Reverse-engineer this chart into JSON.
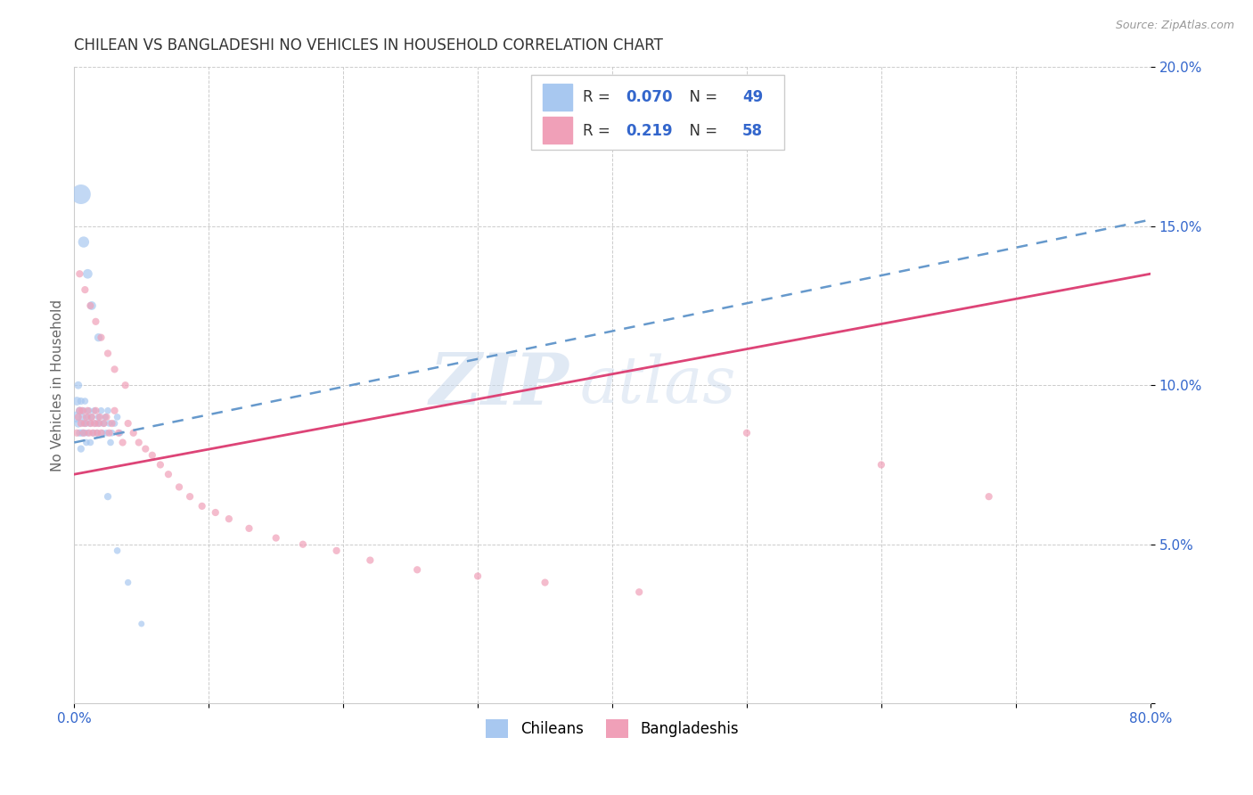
{
  "title": "CHILEAN VS BANGLADESHI NO VEHICLES IN HOUSEHOLD CORRELATION CHART",
  "source": "Source: ZipAtlas.com",
  "xlabel_chileans": "Chileans",
  "xlabel_bangladeshis": "Bangladeshis",
  "ylabel": "No Vehicles in Household",
  "xmin": 0.0,
  "xmax": 0.8,
  "ymin": 0.0,
  "ymax": 0.2,
  "legend_r_chileans": "0.070",
  "legend_n_chileans": "49",
  "legend_r_bangladeshis": "0.219",
  "legend_n_bangladeshis": "58",
  "color_chileans": "#A8C8F0",
  "color_bangladeshis": "#F0A0B8",
  "color_line_chileans": "#6699CC",
  "color_line_bangladeshis": "#DD4477",
  "color_title": "#333333",
  "color_source": "#999999",
  "color_blue": "#3366CC",
  "color_pink": "#DD4477",
  "watermark_color": "#C8D8E8",
  "line_blue_x0": 0.0,
  "line_blue_y0": 0.082,
  "line_blue_x1": 0.8,
  "line_blue_y1": 0.152,
  "line_pink_x0": 0.0,
  "line_pink_y0": 0.072,
  "line_pink_x1": 0.8,
  "line_pink_y1": 0.135,
  "chileans_x": [
    0.001,
    0.002,
    0.003,
    0.003,
    0.004,
    0.004,
    0.005,
    0.005,
    0.006,
    0.006,
    0.007,
    0.007,
    0.008,
    0.008,
    0.009,
    0.009,
    0.01,
    0.01,
    0.011,
    0.012,
    0.012,
    0.013,
    0.014,
    0.015,
    0.016,
    0.017,
    0.018,
    0.019,
    0.02,
    0.021,
    0.022,
    0.023,
    0.024,
    0.025,
    0.026,
    0.027,
    0.028,
    0.03,
    0.032,
    0.034,
    0.005,
    0.007,
    0.01,
    0.013,
    0.018,
    0.025,
    0.032,
    0.04,
    0.05
  ],
  "chileans_y": [
    0.09,
    0.095,
    0.088,
    0.1,
    0.092,
    0.085,
    0.095,
    0.08,
    0.09,
    0.085,
    0.088,
    0.092,
    0.085,
    0.095,
    0.088,
    0.082,
    0.09,
    0.085,
    0.092,
    0.088,
    0.082,
    0.09,
    0.085,
    0.092,
    0.088,
    0.085,
    0.09,
    0.088,
    0.092,
    0.085,
    0.088,
    0.09,
    0.085,
    0.092,
    0.088,
    0.082,
    0.085,
    0.088,
    0.09,
    0.085,
    0.16,
    0.145,
    0.135,
    0.125,
    0.115,
    0.065,
    0.048,
    0.038,
    0.025
  ],
  "chileans_sizes": [
    80,
    50,
    45,
    40,
    40,
    35,
    35,
    35,
    35,
    35,
    30,
    30,
    30,
    30,
    30,
    30,
    30,
    30,
    30,
    30,
    30,
    30,
    30,
    30,
    30,
    30,
    30,
    30,
    30,
    30,
    30,
    30,
    30,
    30,
    30,
    30,
    30,
    30,
    30,
    30,
    250,
    80,
    60,
    50,
    45,
    35,
    30,
    28,
    25
  ],
  "bangladeshis_x": [
    0.002,
    0.003,
    0.004,
    0.005,
    0.006,
    0.007,
    0.008,
    0.009,
    0.01,
    0.011,
    0.012,
    0.013,
    0.014,
    0.015,
    0.016,
    0.017,
    0.018,
    0.019,
    0.02,
    0.022,
    0.024,
    0.026,
    0.028,
    0.03,
    0.033,
    0.036,
    0.04,
    0.044,
    0.048,
    0.053,
    0.058,
    0.064,
    0.07,
    0.078,
    0.086,
    0.095,
    0.105,
    0.115,
    0.13,
    0.15,
    0.17,
    0.195,
    0.22,
    0.255,
    0.3,
    0.35,
    0.42,
    0.5,
    0.6,
    0.68,
    0.004,
    0.008,
    0.012,
    0.016,
    0.02,
    0.025,
    0.03,
    0.038
  ],
  "bangladeshis_y": [
    0.085,
    0.09,
    0.092,
    0.088,
    0.092,
    0.085,
    0.088,
    0.09,
    0.092,
    0.085,
    0.088,
    0.09,
    0.085,
    0.088,
    0.092,
    0.085,
    0.088,
    0.09,
    0.085,
    0.088,
    0.09,
    0.085,
    0.088,
    0.092,
    0.085,
    0.082,
    0.088,
    0.085,
    0.082,
    0.08,
    0.078,
    0.075,
    0.072,
    0.068,
    0.065,
    0.062,
    0.06,
    0.058,
    0.055,
    0.052,
    0.05,
    0.048,
    0.045,
    0.042,
    0.04,
    0.038,
    0.035,
    0.085,
    0.075,
    0.065,
    0.135,
    0.13,
    0.125,
    0.12,
    0.115,
    0.11,
    0.105,
    0.1
  ],
  "bangladeshis_sizes": [
    35,
    35,
    35,
    35,
    35,
    35,
    35,
    35,
    35,
    35,
    35,
    35,
    35,
    35,
    35,
    35,
    35,
    35,
    35,
    35,
    35,
    35,
    35,
    35,
    35,
    35,
    35,
    35,
    35,
    35,
    35,
    35,
    35,
    35,
    35,
    35,
    35,
    35,
    35,
    35,
    35,
    35,
    35,
    35,
    35,
    35,
    35,
    35,
    35,
    35,
    35,
    35,
    35,
    35,
    35,
    35,
    35,
    35
  ]
}
